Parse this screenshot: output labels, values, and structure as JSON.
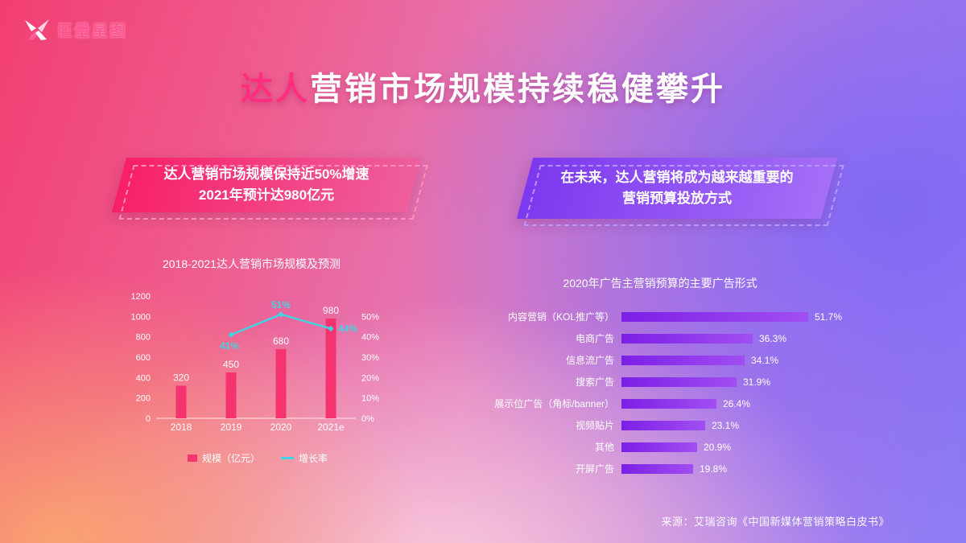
{
  "logo": {
    "brand": "巨量星图"
  },
  "title": {
    "highlight": "达人",
    "rest": "营销市场规模持续稳健攀升"
  },
  "banners": {
    "left": {
      "line1": "达人营销市场规模保持近50%增速",
      "line2": "2021年预计达980亿元"
    },
    "right": {
      "line1": "在未来，达人营销将成为越来越重要的",
      "line2": "营销预算投放方式"
    }
  },
  "source": "来源：艾瑞咨询《中国新媒体营销策略白皮书》",
  "colors": {
    "bar_pink": "#f5346f",
    "line_teal": "#43d2e2",
    "bar_purple": "#8a2cf0"
  },
  "chart_data": [
    {
      "type": "bar",
      "subtype": "bar+line-combo",
      "title": "2018-2021达人营销市场规模及预测",
      "categories": [
        "2018",
        "2019",
        "2020",
        "2021e"
      ],
      "series": [
        {
          "name": "规模（亿元）",
          "kind": "bar",
          "values": [
            320,
            450,
            680,
            980
          ],
          "color": "#f5346f"
        },
        {
          "name": "增长率",
          "kind": "line",
          "values": [
            null,
            41,
            51,
            44
          ],
          "unit": "%",
          "color": "#43d2e2"
        }
      ],
      "left_axis": {
        "ticks": [
          0,
          200,
          400,
          600,
          800,
          1000,
          1200
        ],
        "max": 1200
      },
      "right_axis": {
        "ticks": [
          "0%",
          "10%",
          "20%",
          "30%",
          "40%",
          "50%"
        ],
        "top_equivalent_pct": 60
      },
      "legend_position": "bottom",
      "grid": false
    },
    {
      "type": "bar",
      "orientation": "horizontal",
      "title": "2020年广告主营销预算的主要广告形式",
      "categories": [
        "内容营销（KOL推广等）",
        "电商广告",
        "信息流广告",
        "搜索广告",
        "展示位广告（角标/banner）",
        "视频贴片",
        "其他",
        "开屏广告"
      ],
      "values": [
        51.7,
        36.3,
        34.1,
        31.9,
        26.4,
        23.1,
        20.9,
        19.8
      ],
      "unit": "%",
      "bar_color": "#8a2cf0"
    }
  ]
}
